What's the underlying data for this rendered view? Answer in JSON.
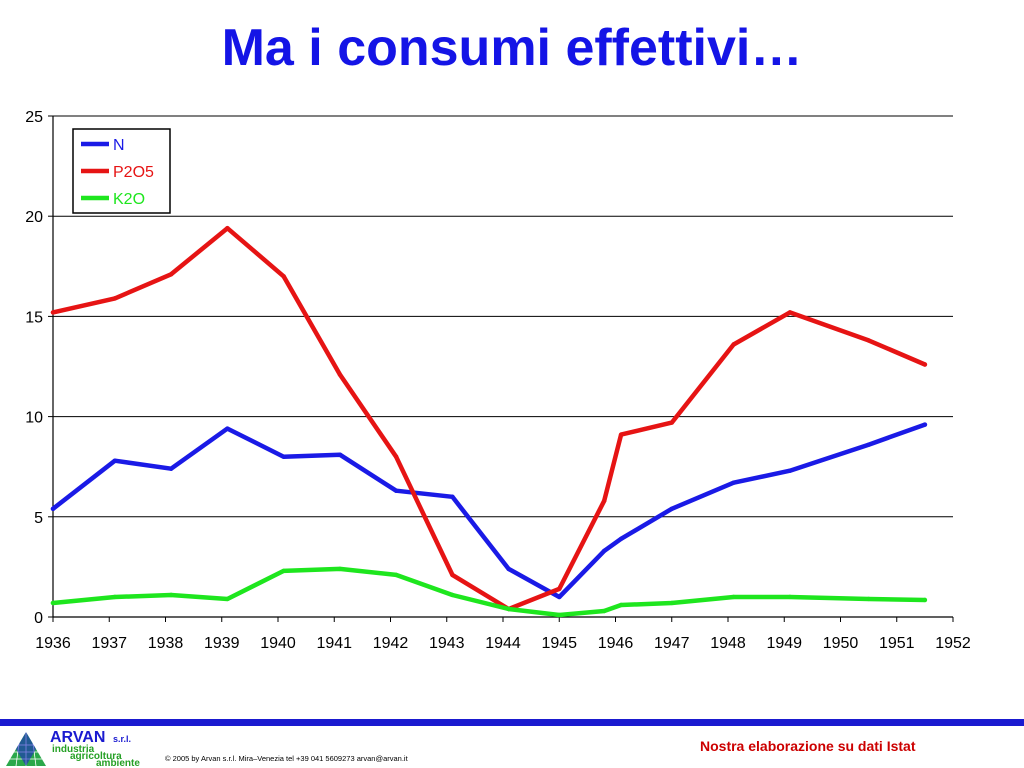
{
  "slide": {
    "title": "Ma i consumi effettivi…"
  },
  "chart_data": {
    "type": "line",
    "title": "",
    "xlabel": "",
    "ylabel": "",
    "xlim": [
      1936,
      1952
    ],
    "ylim": [
      0,
      25
    ],
    "y_ticks": [
      "0",
      "5",
      "10",
      "15",
      "20",
      "25"
    ],
    "x_ticks": [
      "1936",
      "1937",
      "1938",
      "1939",
      "1940",
      "1941",
      "1942",
      "1943",
      "1944",
      "1945",
      "1946",
      "1947",
      "1948",
      "1949",
      "1950",
      "1951",
      "1952"
    ],
    "grid": "horizontal",
    "legend_position": "top-left",
    "series": [
      {
        "name": "N",
        "color": "#1a1ae6",
        "x": [
          1936.0,
          1937.1,
          1938.1,
          1939.1,
          1940.1,
          1941.1,
          1942.1,
          1943.1,
          1944.1,
          1945.0,
          1945.8,
          1946.1,
          1947.0,
          1948.1,
          1949.1,
          1950.5,
          1951.5
        ],
        "y": [
          5.4,
          7.8,
          7.4,
          9.4,
          8.0,
          8.1,
          6.3,
          6.0,
          2.4,
          1.0,
          3.3,
          3.9,
          5.4,
          6.7,
          7.3,
          8.6,
          9.6
        ]
      },
      {
        "name": "P2O5",
        "color": "#e61414",
        "x": [
          1936.0,
          1937.1,
          1938.1,
          1939.1,
          1940.1,
          1941.1,
          1942.1,
          1943.1,
          1944.1,
          1945.0,
          1945.8,
          1946.1,
          1947.0,
          1948.1,
          1949.1,
          1950.5,
          1951.5
        ],
        "y": [
          15.2,
          15.9,
          17.1,
          19.4,
          17.0,
          12.1,
          8.0,
          2.1,
          0.4,
          1.4,
          5.8,
          9.1,
          9.7,
          13.6,
          15.2,
          13.8,
          12.6
        ]
      },
      {
        "name": "K2O",
        "color": "#1ee61e",
        "x": [
          1936.0,
          1937.1,
          1938.1,
          1939.1,
          1940.1,
          1941.1,
          1942.1,
          1943.1,
          1944.1,
          1945.0,
          1945.8,
          1946.1,
          1947.0,
          1948.1,
          1949.1,
          1950.5,
          1951.5
        ],
        "y": [
          0.7,
          1.0,
          1.1,
          0.9,
          2.3,
          2.4,
          2.1,
          1.1,
          0.4,
          0.1,
          0.3,
          0.6,
          0.7,
          1.0,
          1.0,
          0.9,
          0.85
        ]
      }
    ]
  },
  "footer": {
    "logo_name": "ARVAN",
    "logo_suffix": "s.r.l.",
    "logo_line1": "industria",
    "logo_line2": "agricoltura",
    "logo_line3": "ambiente",
    "copyright": "© 2005 by Arvan s.r.l. Mira–Venezia tel +39 041 5609273 arvan@arvan.it",
    "source": "Nostra elaborazione su dati Istat",
    "rule_color": "#1a1ad0"
  }
}
